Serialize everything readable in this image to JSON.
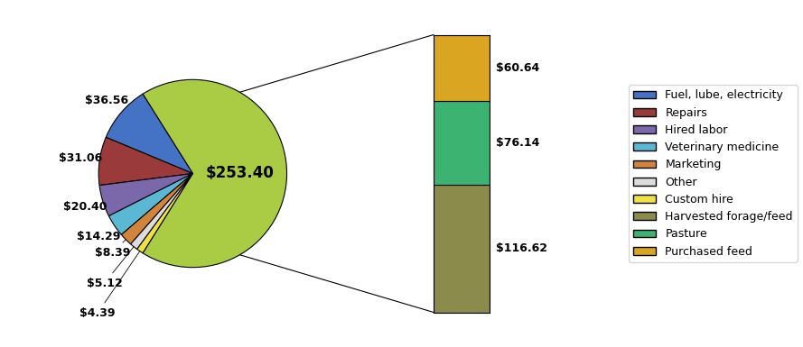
{
  "chart_data": [
    {
      "type": "pie",
      "categories": [
        null,
        "Fuel, lube, electricity",
        "Repairs",
        "Hired labor",
        "Veterinary medicine",
        "Marketing",
        "Other",
        "Custom hire"
      ],
      "values": [
        253.4,
        36.56,
        31.06,
        20.4,
        14.29,
        8.39,
        5.12,
        4.39
      ],
      "value_labels": [
        "$253.40",
        "$36.56",
        "$31.06",
        "$20.40",
        "$14.29",
        "$8.39",
        "$5.12",
        "$4.39"
      ],
      "colors": [
        "#AACC44",
        "#4472C4",
        "#9B3A3A",
        "#7B68AA",
        "#5BB8D4",
        "#D2843A",
        "#DCDCDC",
        "#F0E040"
      ],
      "data_labels": true,
      "legend": "center right"
    },
    {
      "type": "bar",
      "stacked": true,
      "categories": [
        null
      ],
      "series": [
        {
          "name": "Harvested forage/feed",
          "color": "#8B8B4B",
          "values": [
            116.62
          ],
          "value_labels": [
            "$116.62"
          ]
        },
        {
          "name": "Pasture",
          "color": "#3CB371",
          "values": [
            76.14
          ],
          "value_labels": [
            "$76.14"
          ]
        },
        {
          "name": "Purchased feed",
          "color": "#DAA520",
          "values": [
            60.64
          ],
          "value_labels": [
            "$60.64"
          ]
        }
      ],
      "ylim": [
        0,
        253.4
      ],
      "tick_labels": false,
      "data_labels": true,
      "legend": "center right"
    }
  ]
}
